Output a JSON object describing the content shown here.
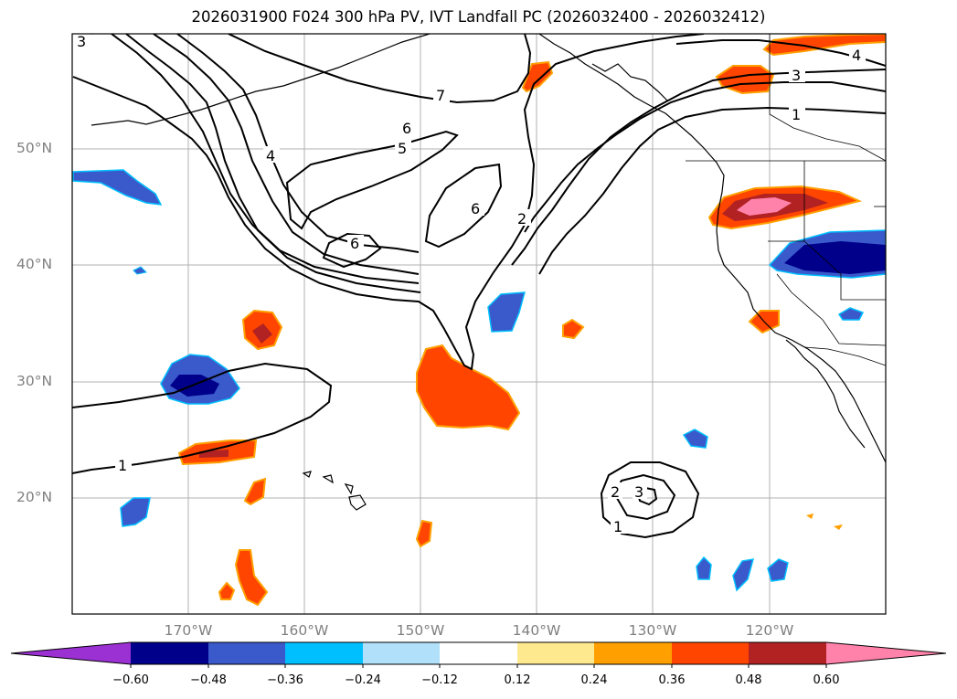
{
  "title": "2026031900 F024 300 hPa PV, IVT Landfall PC (2026032400 - 2026032412)",
  "lat_labels": [
    "50°N",
    "40°N",
    "30°N",
    "20°N"
  ],
  "lon_labels": [
    "170°W",
    "160°W",
    "150°W",
    "140°W",
    "130°W",
    "120°W"
  ],
  "contour_labels": [
    "3",
    "7",
    "6",
    "5",
    "4",
    "6",
    "6",
    "2",
    "3",
    "1",
    "4",
    "1",
    "2",
    "3",
    "1"
  ],
  "colorbar": {
    "ticks": [
      "−0.60",
      "−0.48",
      "−0.36",
      "−0.24",
      "−0.12",
      "0.12",
      "0.24",
      "0.36",
      "0.48",
      "0.60"
    ],
    "colors": [
      "#9b30d3",
      "#00008b",
      "#3a5acb",
      "#00bfff",
      "#b0e0fa",
      "#ffffff",
      "#ffe98f",
      "#ffa000",
      "#ff4500",
      "#b22222",
      "#ff82ab"
    ]
  },
  "chart_data": {
    "type": "map",
    "title": "2026031900 F024 300 hPa PV, IVT Landfall PC (2026032400 - 2026032412)",
    "extent": {
      "lon": [
        -180,
        -110
      ],
      "lat": [
        10,
        60
      ]
    },
    "fill_field": "IVT Landfall PC",
    "fill_levels": [
      -0.6,
      -0.48,
      -0.36,
      -0.24,
      -0.12,
      0.12,
      0.24,
      0.36,
      0.48,
      0.6
    ],
    "contour_field": "300 hPa PV",
    "contour_levels": [
      1,
      2,
      3,
      4,
      5,
      6,
      7
    ]
  }
}
